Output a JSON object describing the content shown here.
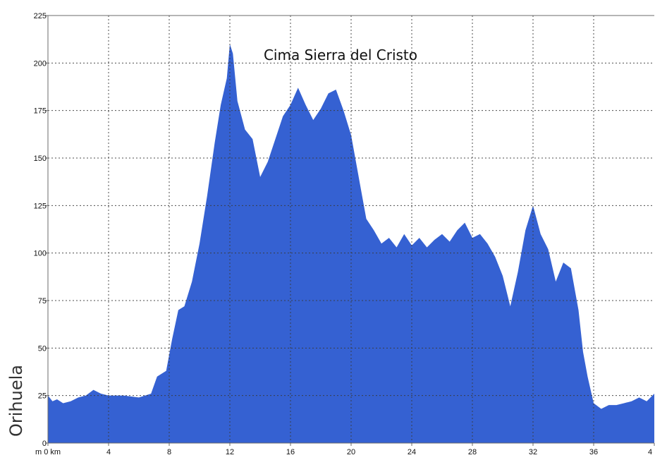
{
  "chart_data": {
    "type": "area",
    "annotation": "Cima Sierra del Cristo",
    "side_label": "Orihuela",
    "x_tick_labels": [
      "m 0 km",
      "4",
      "8",
      "12",
      "16",
      "20",
      "24",
      "28",
      "32",
      "36",
      "4"
    ],
    "y_tick_labels": [
      "0",
      "25",
      "50",
      "75",
      "100",
      "125",
      "150",
      "175",
      "200",
      "225"
    ],
    "xlim": [
      0,
      40
    ],
    "ylim": [
      0,
      225
    ],
    "grid": true,
    "fill_color": "#3561D2",
    "axis_color": "#6B6B6B",
    "grid_color": "#3A3A3A",
    "series": [
      {
        "x": [
          0,
          0.3,
          0.6,
          1.0,
          1.5,
          2.0,
          2.5,
          3.0,
          3.5,
          4.0,
          5.0,
          6.0,
          6.8,
          7.2,
          7.8,
          8.2,
          8.6,
          9.0,
          9.5,
          10.0,
          10.5,
          11.0,
          11.4,
          11.8,
          12.0,
          12.2,
          12.5,
          13.0,
          13.5,
          14.0,
          14.5,
          15.0,
          15.5,
          16.0,
          16.5,
          17.0,
          17.5,
          18.0,
          18.5,
          19.0,
          19.5,
          20.0,
          20.5,
          21.0,
          21.5,
          22.0,
          22.5,
          23.0,
          23.5,
          24.0,
          24.5,
          25.0,
          25.5,
          26.0,
          26.5,
          27.0,
          27.5,
          28.0,
          28.5,
          29.0,
          29.5,
          30.0,
          30.5,
          31.0,
          31.5,
          32.0,
          32.5,
          33.0,
          33.5,
          34.0,
          34.5,
          35.0,
          35.3,
          35.6,
          36.0,
          36.5,
          37.0,
          37.5,
          38.0,
          38.5,
          39.0,
          39.5,
          40.0
        ],
        "values": [
          25,
          22,
          23,
          21,
          22,
          24,
          25,
          28,
          26,
          25,
          25,
          24,
          26,
          35,
          38,
          55,
          70,
          72,
          85,
          105,
          130,
          158,
          178,
          192,
          210,
          205,
          180,
          165,
          160,
          140,
          148,
          160,
          172,
          178,
          187,
          178,
          170,
          176,
          184,
          186,
          175,
          162,
          140,
          118,
          112,
          105,
          108,
          103,
          110,
          104,
          108,
          103,
          107,
          110,
          106,
          112,
          116,
          108,
          110,
          105,
          98,
          88,
          72,
          90,
          112,
          125,
          110,
          102,
          85,
          95,
          92,
          70,
          48,
          35,
          21,
          18,
          20,
          20,
          21,
          22,
          24,
          22,
          26
        ]
      }
    ]
  }
}
